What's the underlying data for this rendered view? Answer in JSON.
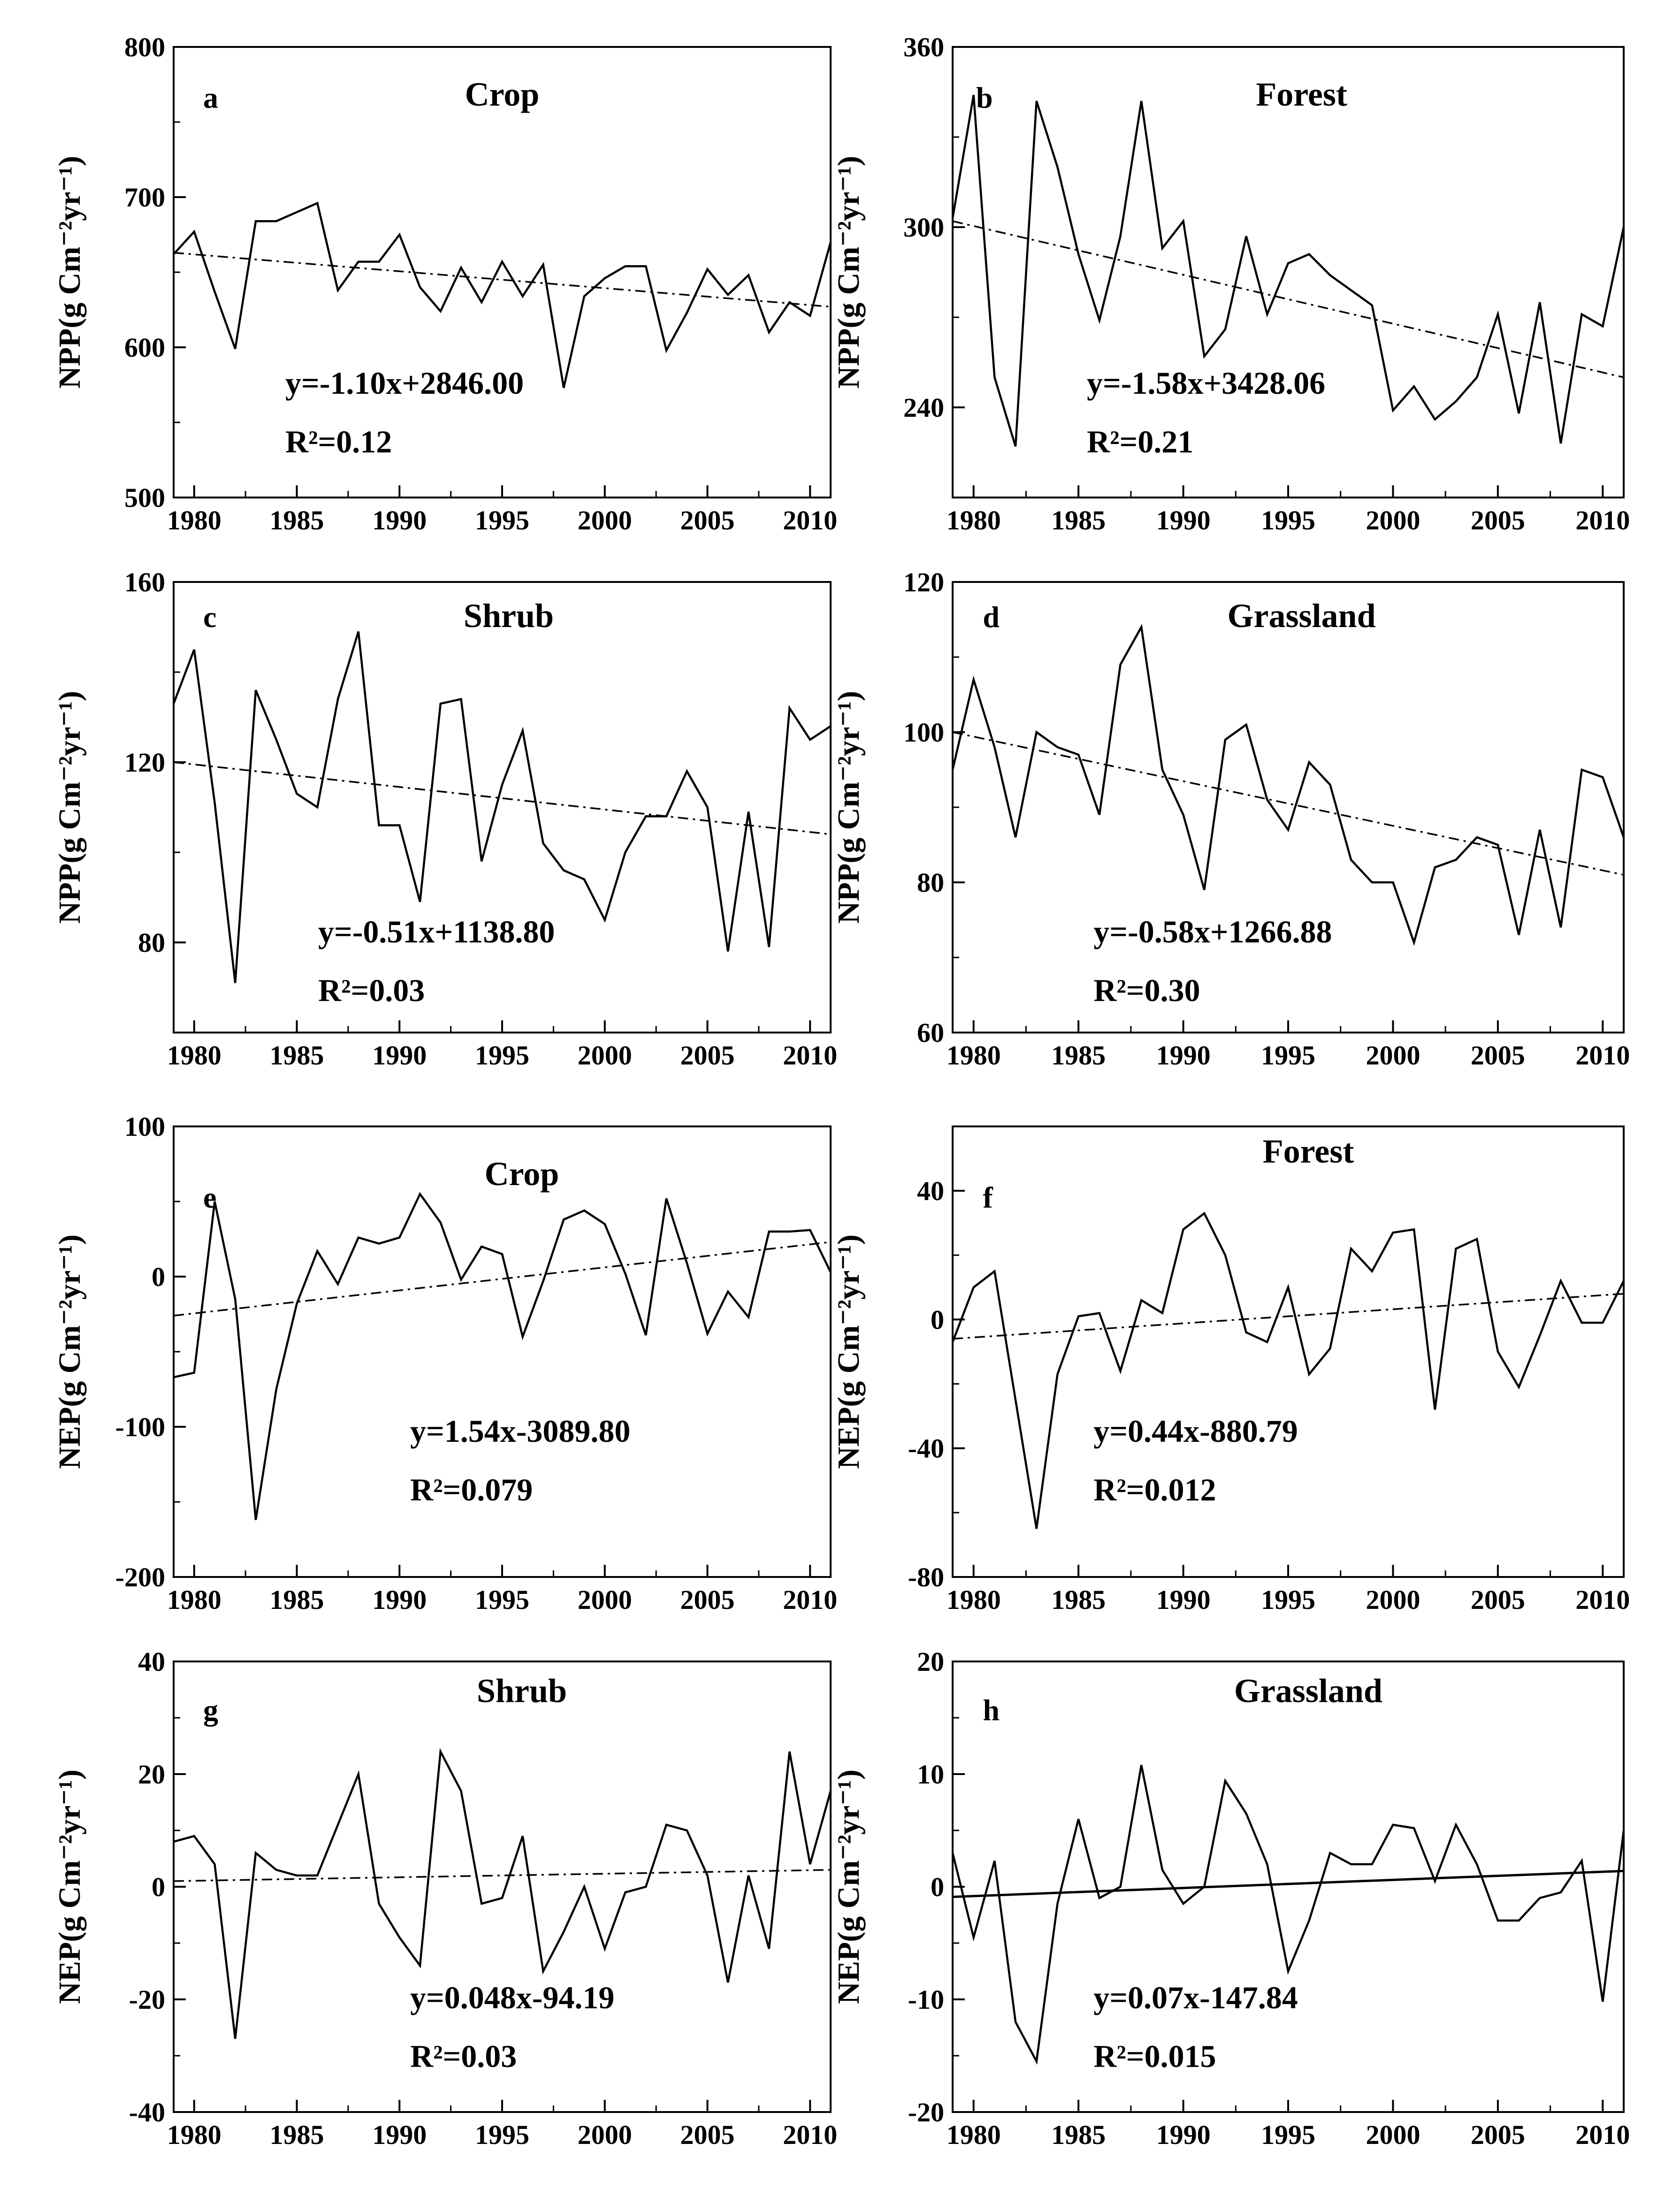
{
  "chart_data": [
    {
      "type": "line",
      "panel_label": "a",
      "title": "Crop",
      "ylabel": "NPP(g Cm⁻²yr⁻¹)",
      "ylim": [
        500,
        800
      ],
      "yticks": [
        500,
        600,
        700,
        800
      ],
      "xlim": [
        1979,
        2011
      ],
      "xticks": [
        1980,
        1985,
        1990,
        1995,
        2000,
        2005,
        2010
      ],
      "equation": "y=-1.10x+2846.00",
      "r2": "R²=0.12",
      "trend_style": "dashdot",
      "x": [
        1979,
        1980,
        1981,
        1982,
        1983,
        1984,
        1985,
        1986,
        1987,
        1988,
        1989,
        1990,
        1991,
        1992,
        1993,
        1994,
        1995,
        1996,
        1997,
        1998,
        1999,
        2000,
        2001,
        2002,
        2003,
        2004,
        2005,
        2006,
        2007,
        2008,
        2009,
        2010,
        2011
      ],
      "values": [
        662,
        677,
        637,
        599,
        684,
        684,
        690,
        696,
        638,
        657,
        657,
        675,
        640,
        624,
        653,
        630,
        657,
        634,
        655,
        573,
        634,
        646,
        654,
        654,
        598,
        623,
        652,
        635,
        648,
        610,
        630,
        621,
        670
      ],
      "trend": {
        "slope": -1.1,
        "x": [
          1979,
          2011
        ],
        "y": [
          663,
          627
        ]
      }
    },
    {
      "type": "line",
      "panel_label": "b",
      "title": "Forest",
      "ylabel": "NPP(g Cm⁻²yr⁻¹)",
      "ylim": [
        210,
        360
      ],
      "yticks": [
        240,
        300,
        360
      ],
      "xlim": [
        1979,
        2011
      ],
      "xticks": [
        1980,
        1985,
        1990,
        1995,
        2000,
        2005,
        2010
      ],
      "equation": "y=-1.58x+3428.06",
      "r2": "R²=0.21",
      "trend_style": "dashdot",
      "x": [
        1979,
        1980,
        1981,
        1982,
        1983,
        1984,
        1985,
        1986,
        1987,
        1988,
        1989,
        1990,
        1991,
        1992,
        1993,
        1994,
        1995,
        1996,
        1997,
        1998,
        1999,
        2000,
        2001,
        2002,
        2003,
        2004,
        2005,
        2006,
        2007,
        2008,
        2009,
        2010,
        2011
      ],
      "values": [
        303,
        344,
        250,
        227,
        342,
        320,
        291,
        269,
        297,
        342,
        293,
        302,
        257,
        266,
        297,
        271,
        288,
        291,
        284,
        279,
        274,
        239,
        247,
        236,
        242,
        250,
        271,
        238,
        275,
        228,
        271,
        267,
        300
      ],
      "trend": {
        "slope": -1.58,
        "x": [
          1979,
          2011
        ],
        "y": [
          302,
          250
        ]
      }
    },
    {
      "type": "line",
      "panel_label": "c",
      "title": "Shrub",
      "ylabel": "NPP(g Cm⁻²yr⁻¹)",
      "ylim": [
        60,
        160
      ],
      "yticks": [
        80,
        120,
        160
      ],
      "xlim": [
        1979,
        2011
      ],
      "xticks": [
        1980,
        1985,
        1990,
        1995,
        2000,
        2005,
        2010
      ],
      "equation": "y=-0.51x+1138.80",
      "r2": "R²=0.03",
      "trend_style": "dashdot",
      "x": [
        1979,
        1980,
        1981,
        1982,
        1983,
        1984,
        1985,
        1986,
        1987,
        1988,
        1989,
        1990,
        1991,
        1992,
        1993,
        1994,
        1995,
        1996,
        1997,
        1998,
        1999,
        2000,
        2001,
        2002,
        2003,
        2004,
        2005,
        2006,
        2007,
        2008,
        2009,
        2010,
        2011
      ],
      "values": [
        133,
        145,
        111,
        71,
        136,
        125,
        113,
        110,
        134,
        149,
        106,
        106,
        89,
        133,
        134,
        98,
        115,
        127,
        102,
        96,
        94,
        85,
        100,
        108,
        108,
        118,
        110,
        78,
        109,
        79,
        132,
        125,
        128
      ],
      "trend": {
        "slope": -0.51,
        "x": [
          1979,
          2011
        ],
        "y": [
          120,
          104
        ]
      }
    },
    {
      "type": "line",
      "panel_label": "d",
      "title": "Grassland",
      "ylabel": "NPP(g Cm⁻²yr⁻¹)",
      "ylim": [
        60,
        120
      ],
      "yticks": [
        60,
        80,
        100,
        120
      ],
      "xlim": [
        1979,
        2011
      ],
      "xticks": [
        1980,
        1985,
        1990,
        1995,
        2000,
        2005,
        2010
      ],
      "equation": "y=-0.58x+1266.88",
      "r2": "R²=0.30",
      "trend_style": "dashdot",
      "x": [
        1979,
        1980,
        1981,
        1982,
        1983,
        1984,
        1985,
        1986,
        1987,
        1988,
        1989,
        1990,
        1991,
        1992,
        1993,
        1994,
        1995,
        1996,
        1997,
        1998,
        1999,
        2000,
        2001,
        2002,
        2003,
        2004,
        2005,
        2006,
        2007,
        2008,
        2009,
        2010,
        2011
      ],
      "values": [
        95,
        107,
        98,
        86,
        100,
        98,
        97,
        89,
        109,
        114,
        95,
        89,
        79,
        99,
        101,
        91,
        87,
        96,
        93,
        83,
        80,
        80,
        72,
        82,
        83,
        86,
        85,
        73,
        87,
        74,
        95,
        94,
        86
      ],
      "trend": {
        "slope": -0.58,
        "x": [
          1979,
          2011
        ],
        "y": [
          100,
          81
        ]
      }
    },
    {
      "type": "line",
      "panel_label": "e",
      "title": "Crop",
      "ylabel": "NEP(g Cm⁻²yr⁻¹)",
      "ylim": [
        -200,
        100
      ],
      "yticks": [
        -200,
        -100,
        0,
        100
      ],
      "xlim": [
        1979,
        2011
      ],
      "xticks": [
        1980,
        1985,
        1990,
        1995,
        2000,
        2005,
        2010
      ],
      "equation": "y=1.54x-3089.80",
      "r2": "R²=0.079",
      "trend_style": "dashdot",
      "x": [
        1979,
        1980,
        1981,
        1982,
        1983,
        1984,
        1985,
        1986,
        1987,
        1988,
        1989,
        1990,
        1991,
        1992,
        1993,
        1994,
        1995,
        1996,
        1997,
        1998,
        1999,
        2000,
        2001,
        2002,
        2003,
        2004,
        2005,
        2006,
        2007,
        2008,
        2009,
        2010,
        2011
      ],
      "values": [
        -67,
        -64,
        50,
        -15,
        -162,
        -75,
        -18,
        17,
        -5,
        26,
        22,
        26,
        55,
        36,
        -2,
        20,
        15,
        -40,
        -3,
        38,
        44,
        35,
        2,
        -39,
        52,
        9,
        -38,
        -10,
        -27,
        30,
        30,
        31,
        3
      ],
      "trend": {
        "slope": 1.54,
        "x": [
          1979,
          2011
        ],
        "y": [
          -26,
          23
        ]
      }
    },
    {
      "type": "line",
      "panel_label": "f",
      "title": "Forest",
      "ylabel": "NEP(g Cm⁻²yr⁻¹)",
      "ylim": [
        -80,
        60
      ],
      "yticks": [
        -80,
        -40,
        0,
        40
      ],
      "xlim": [
        1979,
        2011
      ],
      "xticks": [
        1980,
        1985,
        1990,
        1995,
        2000,
        2005,
        2010
      ],
      "equation": "y=0.44x-880.79",
      "r2": "R²=0.012",
      "trend_style": "dashdot",
      "x": [
        1979,
        1980,
        1981,
        1982,
        1983,
        1984,
        1985,
        1986,
        1987,
        1988,
        1989,
        1990,
        1991,
        1992,
        1993,
        1994,
        1995,
        1996,
        1997,
        1998,
        1999,
        2000,
        2001,
        2002,
        2003,
        2004,
        2005,
        2006,
        2007,
        2008,
        2009,
        2010,
        2011
      ],
      "values": [
        -7,
        10,
        15,
        -25,
        -65,
        -17,
        1,
        2,
        -16,
        6,
        2,
        28,
        33,
        20,
        -4,
        -7,
        10,
        -17,
        -9,
        22,
        15,
        27,
        28,
        -28,
        22,
        25,
        -10,
        -21,
        -5,
        12,
        -1,
        -1,
        12
      ],
      "trend": {
        "slope": 0.44,
        "x": [
          1979,
          2011
        ],
        "y": [
          -6,
          8
        ]
      }
    },
    {
      "type": "line",
      "panel_label": "g",
      "title": "Shrub",
      "ylabel": "NEP(g Cm⁻²yr⁻¹)",
      "ylim": [
        -40,
        40
      ],
      "yticks": [
        -40,
        -20,
        0,
        20,
        40
      ],
      "xlim": [
        1979,
        2011
      ],
      "xticks": [
        1980,
        1985,
        1990,
        1995,
        2000,
        2005,
        2010
      ],
      "equation": "y=0.048x-94.19",
      "r2": "R²=0.03",
      "trend_style": "dashdot",
      "x": [
        1979,
        1980,
        1981,
        1982,
        1983,
        1984,
        1985,
        1986,
        1987,
        1988,
        1989,
        1990,
        1991,
        1992,
        1993,
        1994,
        1995,
        1996,
        1997,
        1998,
        1999,
        2000,
        2001,
        2002,
        2003,
        2004,
        2005,
        2006,
        2007,
        2008,
        2009,
        2010,
        2011
      ],
      "values": [
        8,
        9,
        4,
        -27,
        6,
        3,
        2,
        2,
        11,
        20,
        -3,
        -9,
        -14,
        24,
        17,
        -3,
        -2,
        9,
        -15,
        -8,
        0,
        -11,
        -1,
        0,
        11,
        10,
        2,
        -17,
        2,
        -11,
        24,
        4,
        17
      ],
      "trend": {
        "slope": 0.048,
        "x": [
          1979,
          2011
        ],
        "y": [
          1,
          3
        ]
      }
    },
    {
      "type": "line",
      "panel_label": "h",
      "title": "Grassland",
      "ylabel": "NEP(g Cm⁻²yr⁻¹)",
      "ylim": [
        -20,
        20
      ],
      "yticks": [
        -20,
        -10,
        0,
        10,
        20
      ],
      "xlim": [
        1979,
        2011
      ],
      "xticks": [
        1980,
        1985,
        1990,
        1995,
        2000,
        2005,
        2010
      ],
      "equation": "y=0.07x-147.84",
      "r2": "R²=0.015",
      "trend_style": "solid",
      "x": [
        1979,
        1980,
        1981,
        1982,
        1983,
        1984,
        1985,
        1986,
        1987,
        1988,
        1989,
        1990,
        1991,
        1992,
        1993,
        1994,
        1995,
        1996,
        1997,
        1998,
        1999,
        2000,
        2001,
        2002,
        2003,
        2004,
        2005,
        2006,
        2007,
        2008,
        2009,
        2010,
        2011
      ],
      "values": [
        3,
        -4.5,
        2.3,
        -12,
        -15.5,
        -1.5,
        6,
        -1,
        0,
        10.8,
        1.5,
        -1.5,
        0,
        9.4,
        6.5,
        2,
        -7.5,
        -3,
        3,
        2,
        2,
        5.5,
        5.2,
        0.5,
        5.5,
        2,
        -3,
        -3,
        -1,
        -0.5,
        2.3,
        -10.2,
        5
      ],
      "trend": {
        "slope": 0.07,
        "x": [
          1979,
          2011
        ],
        "y": [
          -0.9,
          1.4
        ]
      }
    }
  ]
}
